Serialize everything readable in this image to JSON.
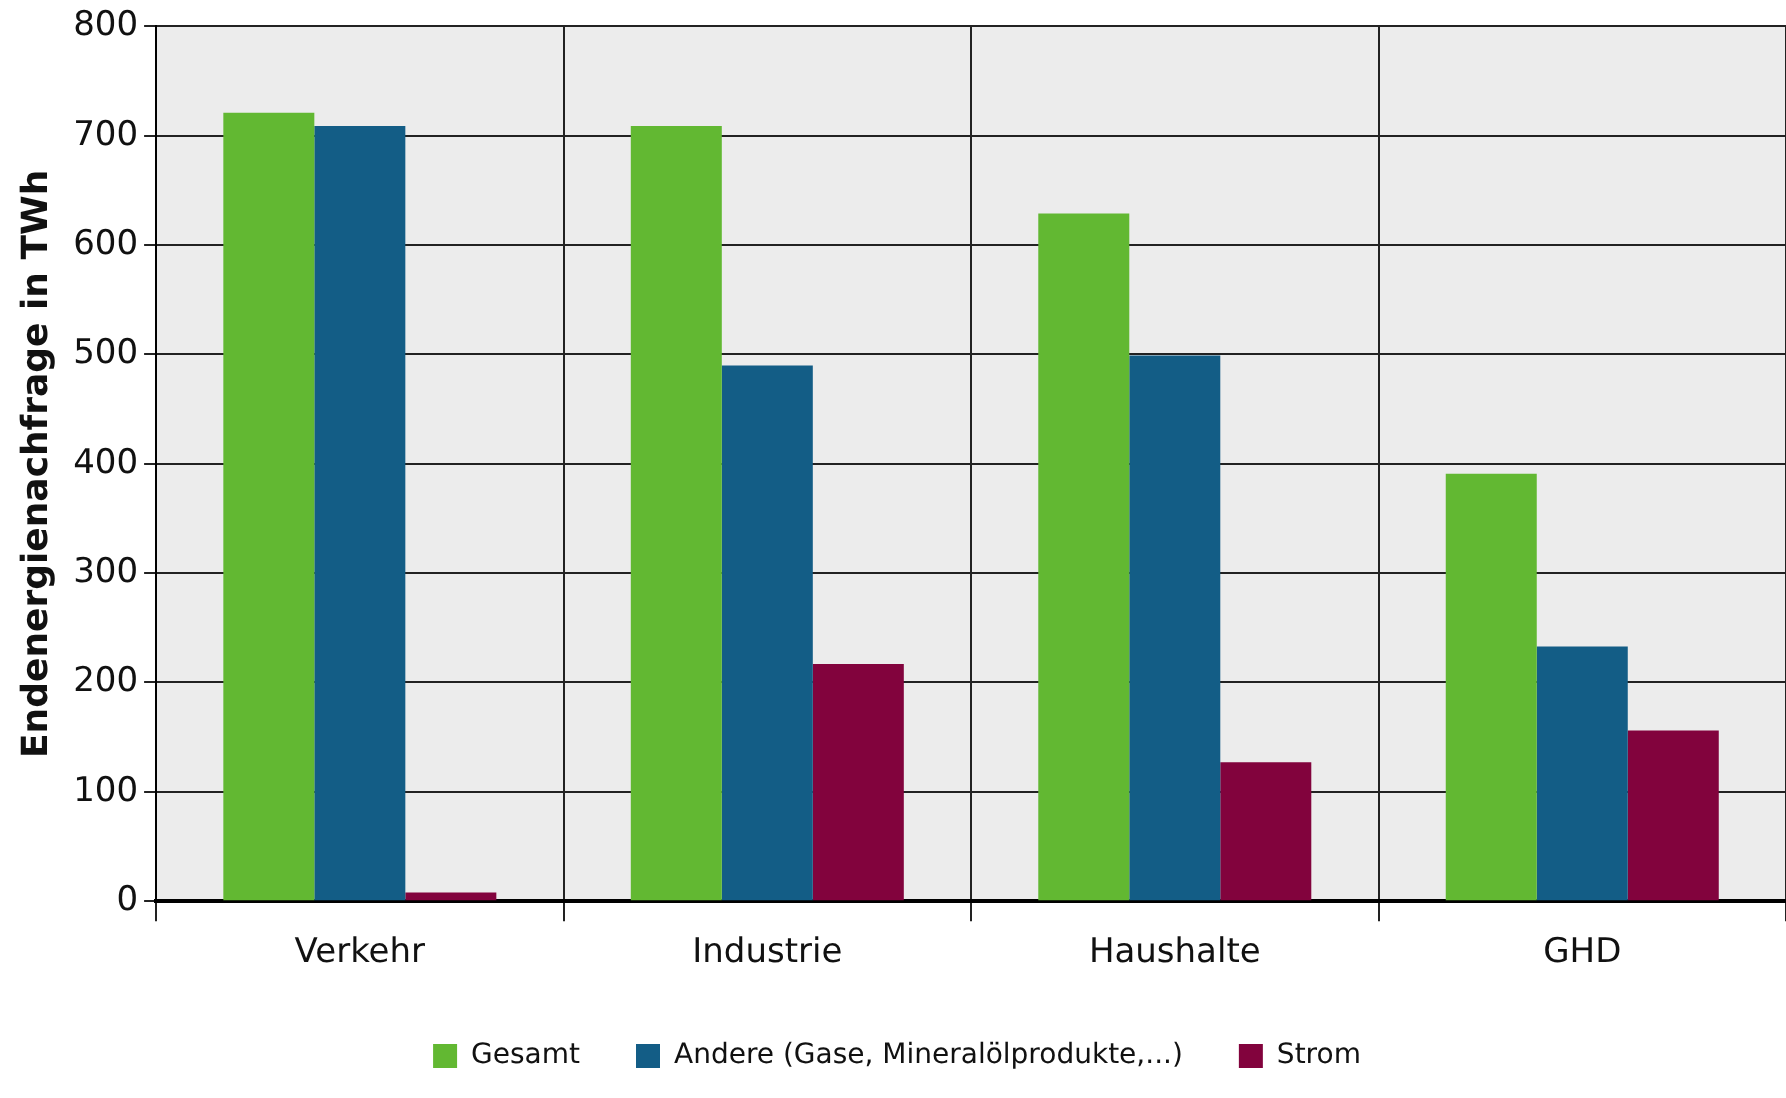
{
  "chart_data": {
    "type": "bar",
    "ylabel": "Endenergienachfrage in TWh",
    "categories": [
      "Verkehr",
      "Industrie",
      "Haushalte",
      "GHD"
    ],
    "series": [
      {
        "name": "Gesamt",
        "color": "#62b832",
        "values": [
          721,
          709,
          629,
          391
        ]
      },
      {
        "name": "Andere (Gase, Mineralölprodukte,...)",
        "color": "#135d86",
        "values": [
          709,
          490,
          499,
          233
        ]
      },
      {
        "name": "Strom",
        "color": "#82033d",
        "values": [
          8,
          217,
          127,
          156
        ]
      }
    ],
    "ylim": [
      0,
      800
    ],
    "yticks": [
      0,
      100,
      200,
      300,
      400,
      500,
      600,
      700,
      800
    ],
    "grid": true,
    "legend": "bottom"
  }
}
